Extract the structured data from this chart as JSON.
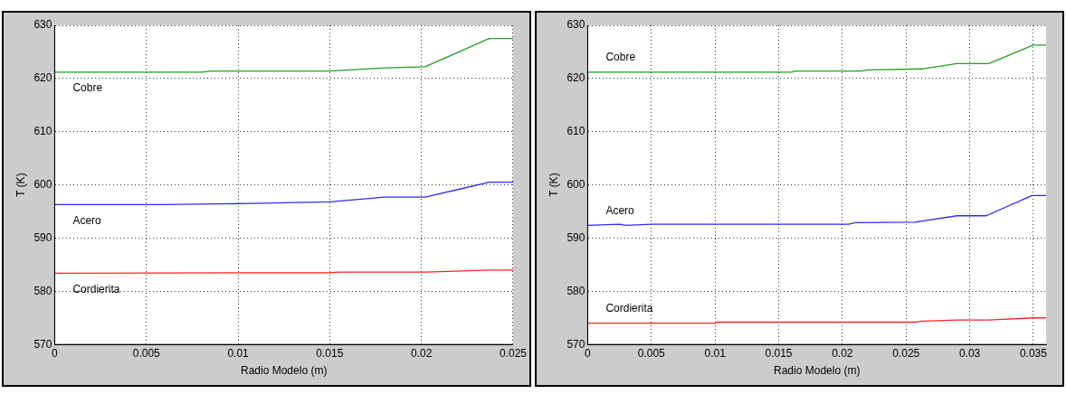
{
  "chart_data": [
    {
      "type": "line",
      "xlabel": "Radio Modelo (m)",
      "ylabel": "T (K)",
      "xlim": [
        0,
        0.025
      ],
      "xticks": [
        0,
        0.005,
        0.01,
        0.015,
        0.02,
        0.025
      ],
      "ylim": [
        570,
        630
      ],
      "yticks": [
        570,
        580,
        590,
        600,
        610,
        620,
        630
      ],
      "grid": true,
      "marker": "none",
      "line_style": "solid",
      "series": [
        {
          "name": "Cobre",
          "color": "#22a022",
          "x": [
            0,
            0.008,
            0.0085,
            0.015,
            0.018,
            0.0202,
            0.0237,
            0.025
          ],
          "values": [
            621.2,
            621.2,
            621.4,
            621.4,
            622.0,
            622.2,
            627.5,
            627.5
          ]
        },
        {
          "name": "Acero",
          "color": "#2b2bff",
          "x": [
            0,
            0.006,
            0.0107,
            0.015,
            0.018,
            0.0202,
            0.0237,
            0.025
          ],
          "values": [
            596.3,
            596.3,
            596.5,
            596.8,
            597.7,
            597.7,
            600.5,
            600.5
          ]
        },
        {
          "name": "Cordierita",
          "color": "#ff2222",
          "x": [
            0,
            0.015,
            0.0155,
            0.0202,
            0.0238,
            0.025
          ],
          "values": [
            583.4,
            583.5,
            583.6,
            583.6,
            584.0,
            584.0
          ]
        }
      ]
    },
    {
      "type": "line",
      "xlabel": "Radio Modelo (m)",
      "ylabel": "T (K)",
      "xlim": [
        0,
        0.036
      ],
      "xticks": [
        0,
        0.005,
        0.01,
        0.015,
        0.02,
        0.025,
        0.03,
        0.035
      ],
      "ylim": [
        570,
        630
      ],
      "yticks": [
        570,
        580,
        590,
        600,
        610,
        620,
        630
      ],
      "grid": true,
      "marker": "none",
      "line_style": "solid",
      "series": [
        {
          "name": "Cobre",
          "color": "#22a022",
          "x": [
            0,
            0.016,
            0.0163,
            0.0215,
            0.022,
            0.0262,
            0.029,
            0.0315,
            0.035,
            0.036
          ],
          "values": [
            621.2,
            621.2,
            621.4,
            621.4,
            621.6,
            621.8,
            622.8,
            622.8,
            626.3,
            626.3
          ]
        },
        {
          "name": "Acero",
          "color": "#2b2bff",
          "x": [
            0,
            0.0025,
            0.003,
            0.005,
            0.0205,
            0.021,
            0.0257,
            0.029,
            0.0313,
            0.0349,
            0.036
          ],
          "values": [
            592.4,
            592.6,
            592.4,
            592.6,
            592.6,
            592.9,
            593.0,
            594.2,
            594.2,
            598.0,
            598.0
          ]
        },
        {
          "name": "Cordierita",
          "color": "#ff2222",
          "x": [
            0,
            0.01,
            0.0101,
            0.0258,
            0.0262,
            0.029,
            0.0315,
            0.035,
            0.036
          ],
          "values": [
            574.0,
            574.0,
            574.2,
            574.2,
            574.4,
            574.6,
            574.6,
            575.0,
            575.0
          ]
        }
      ]
    }
  ]
}
